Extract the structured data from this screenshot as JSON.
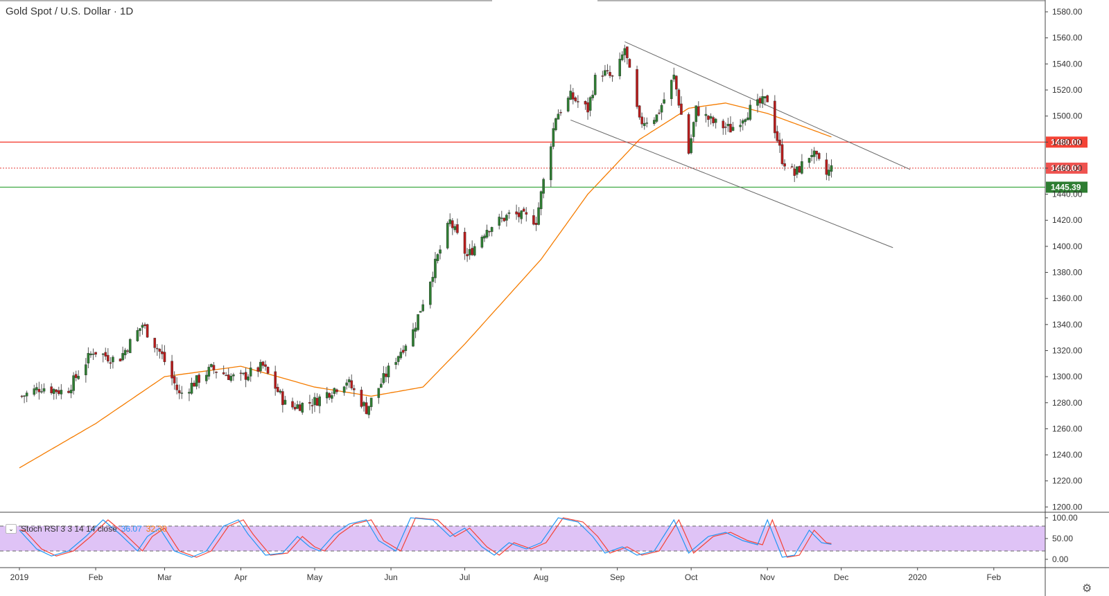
{
  "header": {
    "title": "Gold Spot / U.S. Dollar · 1D"
  },
  "colors": {
    "up": "#2e7d32",
    "down": "#b71c1c",
    "wick": "#555555",
    "ma": "#f57c00",
    "resistance": "#f44336",
    "support": "#4caf50",
    "channel": "#666666",
    "stoch_k": "#2196f3",
    "stoch_d": "#f44336",
    "stoch_band": "#d9b8f5"
  },
  "chart_data": {
    "type": "line",
    "title": "Gold Spot / U.S. Dollar · 1D",
    "y_ticks": [
      "1580.00",
      "1560.00",
      "1540.00",
      "1520.00",
      "1500.00",
      "1480.00",
      "1460.00",
      "1440.00",
      "1420.00",
      "1400.00",
      "1380.00",
      "1360.00",
      "1340.00",
      "1320.00",
      "1300.00",
      "1280.00",
      "1260.00",
      "1240.00",
      "1220.00",
      "1200.00"
    ],
    "y_range": [
      1197,
      1588
    ],
    "x_labels": [
      "2019",
      "Feb",
      "Mar",
      "Apr",
      "May",
      "Jun",
      "Jul",
      "Aug",
      "Sep",
      "Oct",
      "Nov",
      "Dec",
      "2020",
      "Feb"
    ],
    "x_label_dates": [
      "2019-01-01",
      "2019-02-01",
      "2019-03-01",
      "2019-04-01",
      "2019-05-01",
      "2019-06-01",
      "2019-07-01",
      "2019-08-01",
      "2019-09-01",
      "2019-10-01",
      "2019-11-01",
      "2019-12-01",
      "2020-01-01",
      "2020-02-01"
    ],
    "price_close_keypoints": [
      [
        "2019-01-02",
        1285
      ],
      [
        "2019-01-10",
        1292
      ],
      [
        "2019-01-20",
        1288
      ],
      [
        "2019-01-31",
        1320
      ],
      [
        "2019-02-10",
        1312
      ],
      [
        "2019-02-20",
        1340
      ],
      [
        "2019-02-28",
        1316
      ],
      [
        "2019-03-07",
        1286
      ],
      [
        "2019-03-20",
        1306
      ],
      [
        "2019-03-31",
        1298
      ],
      [
        "2019-04-10",
        1308
      ],
      [
        "2019-04-20",
        1276
      ],
      [
        "2019-05-01",
        1281
      ],
      [
        "2019-05-14",
        1297
      ],
      [
        "2019-05-22",
        1275
      ],
      [
        "2019-05-31",
        1305
      ],
      [
        "2019-06-10",
        1335
      ],
      [
        "2019-06-20",
        1392
      ],
      [
        "2019-06-25",
        1419
      ],
      [
        "2019-07-02",
        1392
      ],
      [
        "2019-07-10",
        1414
      ],
      [
        "2019-07-20",
        1425
      ],
      [
        "2019-07-30",
        1420
      ],
      [
        "2019-08-07",
        1500
      ],
      [
        "2019-08-13",
        1515
      ],
      [
        "2019-08-20",
        1505
      ],
      [
        "2019-08-24",
        1536
      ],
      [
        "2019-08-31",
        1528
      ],
      [
        "2019-09-04",
        1552
      ],
      [
        "2019-09-10",
        1495
      ],
      [
        "2019-09-17",
        1500
      ],
      [
        "2019-09-24",
        1530
      ],
      [
        "2019-09-30",
        1472
      ],
      [
        "2019-10-03",
        1505
      ],
      [
        "2019-10-10",
        1495
      ],
      [
        "2019-10-17",
        1490
      ],
      [
        "2019-10-25",
        1505
      ],
      [
        "2019-11-01",
        1513
      ],
      [
        "2019-11-07",
        1467
      ],
      [
        "2019-11-12",
        1455
      ],
      [
        "2019-11-19",
        1472
      ],
      [
        "2019-11-25",
        1455
      ],
      [
        "2019-11-27",
        1460
      ]
    ],
    "ma_keypoints": [
      [
        "2019-01-01",
        1230
      ],
      [
        "2019-02-01",
        1264
      ],
      [
        "2019-03-01",
        1300
      ],
      [
        "2019-04-01",
        1308
      ],
      [
        "2019-05-01",
        1292
      ],
      [
        "2019-05-24",
        1285
      ],
      [
        "2019-06-14",
        1292
      ],
      [
        "2019-07-01",
        1325
      ],
      [
        "2019-08-01",
        1390
      ],
      [
        "2019-08-20",
        1440
      ],
      [
        "2019-09-10",
        1482
      ],
      [
        "2019-09-30",
        1506
      ],
      [
        "2019-10-15",
        1510
      ],
      [
        "2019-11-01",
        1502
      ],
      [
        "2019-11-27",
        1484
      ]
    ],
    "horizontal_levels": [
      {
        "label": "1480.00",
        "value": 1480.0,
        "style": "resistance"
      },
      {
        "label": "1460.01",
        "value": 1460.01,
        "style": "last"
      },
      {
        "label": "1445.39",
        "value": 1445.39,
        "style": "support"
      }
    ],
    "channel_lines": [
      {
        "from": [
          "2019-09-04",
          1557
        ],
        "to": [
          "2019-12-29",
          1459
        ]
      },
      {
        "from": [
          "2019-08-13",
          1497
        ],
        "to": [
          "2019-12-22",
          1399
        ]
      }
    ],
    "stoch": {
      "label": "Stoch RSI 3 3 14 14 close",
      "k_value": "36.07",
      "d_value": "32.30",
      "ticks": [
        "100.00",
        "50.00",
        "0.00"
      ],
      "band": [
        20,
        80
      ],
      "k_keypoints": [
        [
          "2019-01-01",
          70
        ],
        [
          "2019-01-08",
          25
        ],
        [
          "2019-01-14",
          8
        ],
        [
          "2019-01-21",
          20
        ],
        [
          "2019-01-28",
          55
        ],
        [
          "2019-02-04",
          95
        ],
        [
          "2019-02-11",
          60
        ],
        [
          "2019-02-18",
          20
        ],
        [
          "2019-02-22",
          55
        ],
        [
          "2019-02-27",
          75
        ],
        [
          "2019-03-05",
          20
        ],
        [
          "2019-03-12",
          5
        ],
        [
          "2019-03-18",
          20
        ],
        [
          "2019-03-25",
          80
        ],
        [
          "2019-03-31",
          95
        ],
        [
          "2019-04-04",
          60
        ],
        [
          "2019-04-11",
          10
        ],
        [
          "2019-04-18",
          15
        ],
        [
          "2019-04-24",
          55
        ],
        [
          "2019-04-29",
          30
        ],
        [
          "2019-05-03",
          20
        ],
        [
          "2019-05-09",
          60
        ],
        [
          "2019-05-15",
          85
        ],
        [
          "2019-05-22",
          95
        ],
        [
          "2019-05-27",
          45
        ],
        [
          "2019-06-03",
          20
        ],
        [
          "2019-06-09",
          100
        ],
        [
          "2019-06-18",
          95
        ],
        [
          "2019-06-25",
          55
        ],
        [
          "2019-07-01",
          75
        ],
        [
          "2019-07-08",
          30
        ],
        [
          "2019-07-13",
          10
        ],
        [
          "2019-07-19",
          40
        ],
        [
          "2019-07-26",
          25
        ],
        [
          "2019-08-01",
          40
        ],
        [
          "2019-08-08",
          100
        ],
        [
          "2019-08-16",
          90
        ],
        [
          "2019-08-22",
          55
        ],
        [
          "2019-08-27",
          15
        ],
        [
          "2019-09-03",
          30
        ],
        [
          "2019-09-09",
          10
        ],
        [
          "2019-09-16",
          20
        ],
        [
          "2019-09-24",
          95
        ],
        [
          "2019-09-30",
          15
        ],
        [
          "2019-10-08",
          55
        ],
        [
          "2019-10-15",
          65
        ],
        [
          "2019-10-22",
          45
        ],
        [
          "2019-10-28",
          35
        ],
        [
          "2019-11-01",
          95
        ],
        [
          "2019-11-07",
          5
        ],
        [
          "2019-11-12",
          10
        ],
        [
          "2019-11-18",
          70
        ],
        [
          "2019-11-23",
          40
        ],
        [
          "2019-11-27",
          36
        ]
      ]
    }
  }
}
